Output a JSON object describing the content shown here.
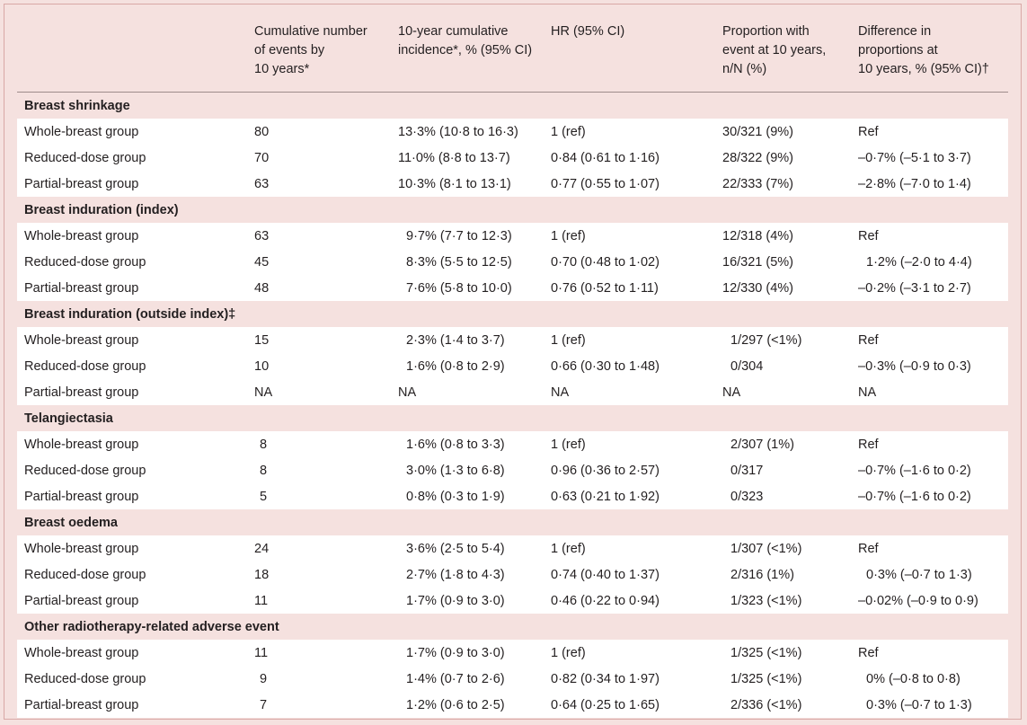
{
  "columns": [
    "",
    "Cumulative number of events by 10 years*",
    "10-year cumulative incidence*, % (95% CI)",
    "HR (95% CI)",
    "Proportion with event at 10 years, n/N (%)",
    "Difference in proportions at 10 years, % (95% CI)†"
  ],
  "header_lines": [
    [
      ""
    ],
    [
      "Cumulative number",
      "of events by",
      "10 years*"
    ],
    [
      "10-year cumulative",
      "incidence*, % (95% CI)"
    ],
    [
      "HR (95% CI)"
    ],
    [
      "Proportion with",
      "event at 10 years,",
      "n/N (%)"
    ],
    [
      "Difference in",
      "proportions at",
      "10 years, % (95% CI)†"
    ]
  ],
  "sections": [
    {
      "title": "Breast shrinkage",
      "rows": [
        [
          "Whole-breast group",
          "80",
          "13·3% (10·8 to 16·3)",
          "1 (ref)",
          "30/321 (9%)",
          "Ref"
        ],
        [
          "Reduced-dose group",
          "70",
          "11·0% (8·8 to 13·7)",
          "0·84 (0·61 to 1·16)",
          "28/322 (9%)",
          "–0·7% (–5·1 to 3·7)"
        ],
        [
          "Partial-breast group",
          "63",
          "10·3% (8·1 to 13·1)",
          "0·77 (0·55 to 1·07)",
          "22/333 (7%)",
          "–2·8% (–7·0 to 1·4)"
        ]
      ]
    },
    {
      "title": "Breast induration (index)",
      "rows": [
        [
          "Whole-breast group",
          "63",
          "9·7% (7·7 to 12·3)",
          "1 (ref)",
          "12/318 (4%)",
          "Ref"
        ],
        [
          "Reduced-dose group",
          "45",
          "8·3% (5·5 to 12·5)",
          "0·70 (0·48 to 1·02)",
          "16/321 (5%)",
          "1·2% (–2·0 to 4·4)"
        ],
        [
          "Partial-breast group",
          "48",
          "7·6% (5·8 to 10·0)",
          "0·76 (0·52 to 1·11)",
          "12/330 (4%)",
          "–0·2% (–3·1 to 2·7)"
        ]
      ]
    },
    {
      "title": "Breast induration (outside index)‡",
      "rows": [
        [
          "Whole-breast group",
          "15",
          "2·3% (1·4 to 3·7)",
          "1 (ref)",
          "1/297 (<1%)",
          "Ref"
        ],
        [
          "Reduced-dose group",
          "10",
          "1·6% (0·8 to 2·9)",
          "0·66 (0·30 to 1·48)",
          "0/304",
          "–0·3% (–0·9 to 0·3)"
        ],
        [
          "Partial-breast group",
          "NA",
          "NA",
          "NA",
          "NA",
          "NA"
        ]
      ]
    },
    {
      "title": "Telangiectasia",
      "rows": [
        [
          "Whole-breast group",
          "8",
          "1·6% (0·8 to 3·3)",
          "1 (ref)",
          "2/307 (1%)",
          "Ref"
        ],
        [
          "Reduced-dose group",
          "8",
          "3·0% (1·3 to 6·8)",
          "0·96 (0·36 to 2·57)",
          "0/317",
          "–0·7% (–1·6 to 0·2)"
        ],
        [
          "Partial-breast group",
          "5",
          "0·8% (0·3 to 1·9)",
          "0·63 (0·21 to 1·92)",
          "0/323",
          "–0·7% (–1·6 to 0·2)"
        ]
      ]
    },
    {
      "title": "Breast oedema",
      "rows": [
        [
          "Whole-breast group",
          "24",
          "3·6% (2·5 to 5·4)",
          "1 (ref)",
          "1/307 (<1%)",
          "Ref"
        ],
        [
          "Reduced-dose group",
          "18",
          "2·7% (1·8 to 4·3)",
          "0·74 (0·40 to 1·37)",
          "2/316 (1%)",
          "0·3% (–0·7 to 1·3)"
        ],
        [
          "Partial-breast group",
          "11",
          "1·7% (0·9 to 3·0)",
          "0·46 (0·22 to 0·94)",
          "1/323 (<1%)",
          "–0·02% (–0·9 to 0·9)"
        ]
      ]
    },
    {
      "title": "Other radiotherapy-related adverse event",
      "rows": [
        [
          "Whole-breast group",
          "11",
          "1·7% (0·9 to 3·0)",
          "1 (ref)",
          "1/325 (<1%)",
          "Ref"
        ],
        [
          "Reduced-dose group",
          "9",
          "1·4% (0·7 to 2·6)",
          "0·82 (0·34 to 1·97)",
          "1/325 (<1%)",
          "0% (–0·8 to 0·8)"
        ],
        [
          "Partial-breast group",
          "7",
          "1·2% (0·6 to 2·5)",
          "0·64 (0·25 to 1·65)",
          "2/336 (<1%)",
          "0·3% (–0·7 to 1·3)"
        ]
      ]
    }
  ]
}
